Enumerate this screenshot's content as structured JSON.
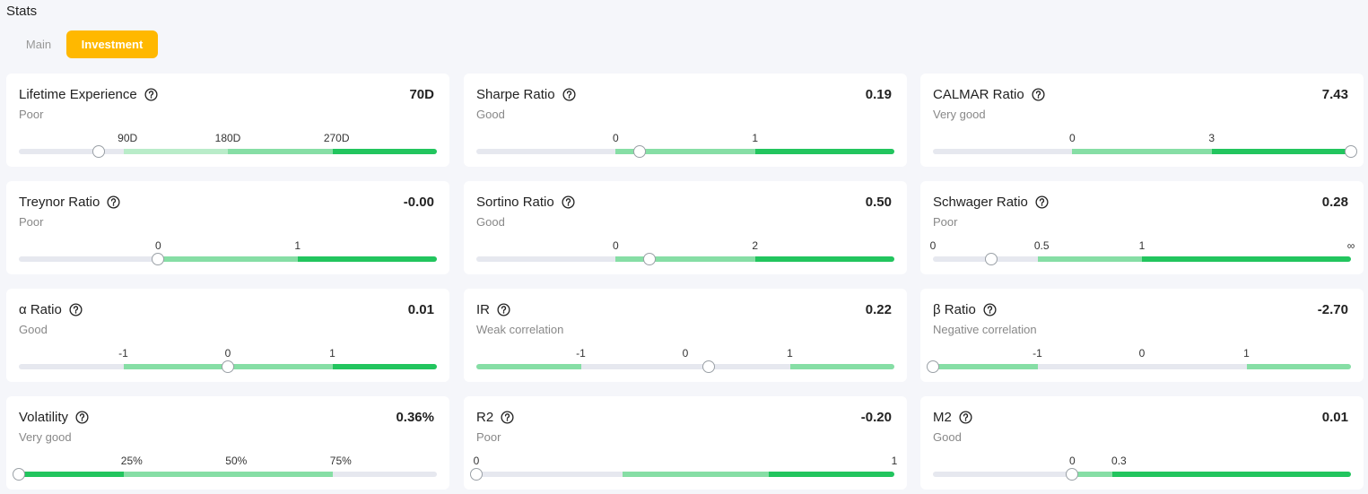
{
  "header": {
    "title": "Stats"
  },
  "tabs": [
    "Main",
    "Investment"
  ],
  "cards": [
    {
      "title": "Lifetime Experience",
      "status": "Poor",
      "value": "70D",
      "ticks": [
        "90D",
        "180D",
        "270D"
      ]
    },
    {
      "title": "Sharpe Ratio",
      "status": "Good",
      "value": "0.19",
      "ticks": [
        "0",
        "1"
      ]
    },
    {
      "title": "CALMAR Ratio",
      "status": "Very good",
      "value": "7.43",
      "ticks": [
        "0",
        "3"
      ]
    },
    {
      "title": "Treynor Ratio",
      "status": "Poor",
      "value": "-0.00",
      "ticks": [
        "0",
        "1"
      ]
    },
    {
      "title": "Sortino Ratio",
      "status": "Good",
      "value": "0.50",
      "ticks": [
        "0",
        "2"
      ]
    },
    {
      "title": "Schwager Ratio",
      "status": "Poor",
      "value": "0.28",
      "ticks": [
        "0",
        "0.5",
        "1",
        "∞"
      ]
    },
    {
      "title": "α Ratio",
      "status": "Good",
      "value": "0.01",
      "ticks": [
        "-1",
        "0",
        "1"
      ]
    },
    {
      "title": "IR",
      "status": "Weak correlation",
      "value": "0.22",
      "ticks": [
        "-1",
        "0",
        "1"
      ]
    },
    {
      "title": "β Ratio",
      "status": "Negative correlation",
      "value": "-2.70",
      "ticks": [
        "-1",
        "0",
        "1"
      ]
    },
    {
      "title": "Volatility",
      "status": "Very good",
      "value": "0.36%",
      "ticks": [
        "25%",
        "50%",
        "75%"
      ]
    },
    {
      "title": "R2",
      "status": "Poor",
      "value": "-0.20",
      "ticks": [
        "0",
        "1"
      ]
    },
    {
      "title": "M2",
      "status": "Good",
      "value": "0.01",
      "ticks": [
        "0",
        "0.3"
      ]
    }
  ]
}
